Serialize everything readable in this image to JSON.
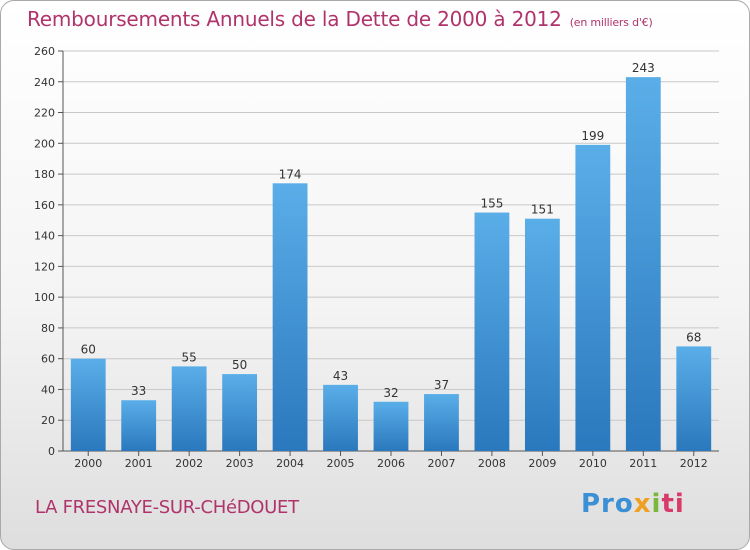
{
  "chart_data": {
    "type": "bar",
    "title": "Remboursements Annuels de la Dette de 2000 à 2012",
    "unit_note": "(en milliers d'€)",
    "xlabel": "",
    "ylabel": "",
    "categories": [
      "2000",
      "2001",
      "2002",
      "2003",
      "2004",
      "2005",
      "2006",
      "2007",
      "2008",
      "2009",
      "2010",
      "2011",
      "2012"
    ],
    "values": [
      60,
      33,
      55,
      50,
      174,
      43,
      32,
      37,
      155,
      151,
      199,
      243,
      68
    ],
    "ylim": [
      0,
      260
    ],
    "yticks": [
      0,
      20,
      40,
      60,
      80,
      100,
      120,
      140,
      160,
      180,
      200,
      220,
      240,
      260
    ],
    "grid": true,
    "bar_color_top": "#5aaee8",
    "bar_color_bottom": "#2a78bd"
  },
  "footer": {
    "commune": "LA FRESNAYE-SUR-CHéDOUET",
    "logo_parts": [
      "Pro",
      "x",
      "i",
      "ti"
    ]
  },
  "colors": {
    "title": "#b0346b",
    "grid": "#c8c8c8"
  }
}
